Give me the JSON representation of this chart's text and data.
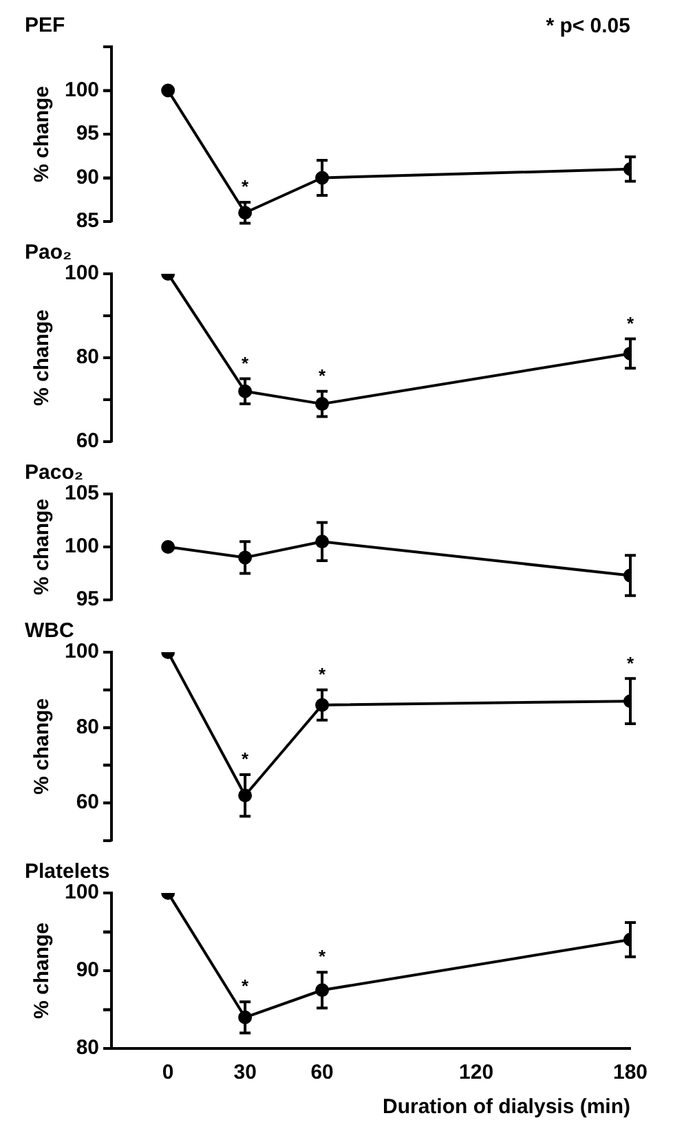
{
  "chart_data": [
    {
      "type": "line",
      "title": "PEF",
      "ylabel": "% change",
      "xlim": [
        -22,
        180
      ],
      "ylim": [
        85,
        105
      ],
      "yticks": [
        85,
        90,
        95,
        100,
        {
          "value": 105,
          "label": null
        }
      ],
      "tick_labels": "y",
      "x": [
        0,
        30,
        60,
        180
      ],
      "series": [
        {
          "color": "#000000",
          "values": [
            100,
            86,
            90,
            91
          ],
          "errors": [
            null,
            1.2,
            2,
            1.4
          ]
        }
      ],
      "marker": "circle",
      "line_style": "solid",
      "grid": false,
      "legend": false,
      "annotations": [
        "* p< 0.05",
        {
          "text": "*",
          "x": 30,
          "y": 86
        }
      ]
    },
    {
      "type": "line",
      "title": "Pao₂",
      "ylabel": "% change",
      "xlim": [
        -22,
        180
      ],
      "ylim": [
        60,
        100
      ],
      "yticks": [
        60,
        {
          "value": 70,
          "label": null
        },
        80,
        {
          "value": 90,
          "label": null
        },
        100
      ],
      "tick_labels": "y",
      "x": [
        0,
        30,
        60,
        180
      ],
      "series": [
        {
          "color": "#000000",
          "values": [
            100,
            72,
            69,
            81
          ],
          "errors": [
            null,
            3,
            3,
            3.5
          ]
        }
      ],
      "marker": "circle",
      "line_style": "solid",
      "grid": false,
      "legend": false,
      "annotations": [
        {
          "text": "*",
          "x": 30,
          "y": 72
        },
        {
          "text": "*",
          "x": 60,
          "y": 69
        },
        {
          "text": "*",
          "x": 180,
          "y": 81
        }
      ]
    },
    {
      "type": "line",
      "title": "Paco₂",
      "ylabel": "% change",
      "xlim": [
        -22,
        180
      ],
      "ylim": [
        95,
        105
      ],
      "yticks": [
        95,
        100,
        105
      ],
      "tick_labels": "y",
      "x": [
        0,
        30,
        60,
        180
      ],
      "series": [
        {
          "color": "#000000",
          "values": [
            100,
            99,
            100.5,
            97.3
          ],
          "errors": [
            null,
            1.5,
            1.8,
            1.9
          ]
        }
      ],
      "marker": "circle",
      "line_style": "solid",
      "grid": false,
      "legend": false
    },
    {
      "type": "line",
      "title": "WBC",
      "ylabel": "% change",
      "xlim": [
        -22,
        180
      ],
      "ylim": [
        50,
        100
      ],
      "yticks": [
        {
          "value": 50,
          "label": null
        },
        60,
        {
          "value": 70,
          "label": null
        },
        80,
        {
          "value": 90,
          "label": null
        },
        100
      ],
      "tick_labels": "y",
      "x": [
        0,
        30,
        60,
        180
      ],
      "series": [
        {
          "color": "#000000",
          "values": [
            100,
            62,
            86,
            87
          ],
          "errors": [
            null,
            5.5,
            4,
            6
          ]
        }
      ],
      "marker": "circle",
      "line_style": "solid",
      "grid": false,
      "legend": false,
      "annotations": [
        {
          "text": "*",
          "x": 30,
          "y": 62
        },
        {
          "text": "*",
          "x": 60,
          "y": 86
        },
        {
          "text": "*",
          "x": 180,
          "y": 87
        }
      ]
    },
    {
      "type": "line",
      "title": "Platelets",
      "ylabel": "% change",
      "xlabel": "Duration of dialysis (min)",
      "xlim": [
        -22,
        180
      ],
      "xticks": [
        0,
        30,
        60,
        120,
        180
      ],
      "ylim": [
        80,
        100
      ],
      "yticks": [
        80,
        {
          "value": 85,
          "label": null
        },
        90,
        {
          "value": 95,
          "label": null
        },
        100
      ],
      "x": [
        0,
        30,
        60,
        180
      ],
      "series": [
        {
          "color": "#000000",
          "values": [
            100,
            84,
            87.5,
            94
          ],
          "errors": [
            null,
            2,
            2.3,
            2.2
          ]
        }
      ],
      "marker": "circle",
      "line_style": "solid",
      "grid": false,
      "legend": false,
      "annotations": [
        {
          "text": "*",
          "x": 30,
          "y": 84
        },
        {
          "text": "*",
          "x": 60,
          "y": 87.5
        }
      ]
    }
  ]
}
